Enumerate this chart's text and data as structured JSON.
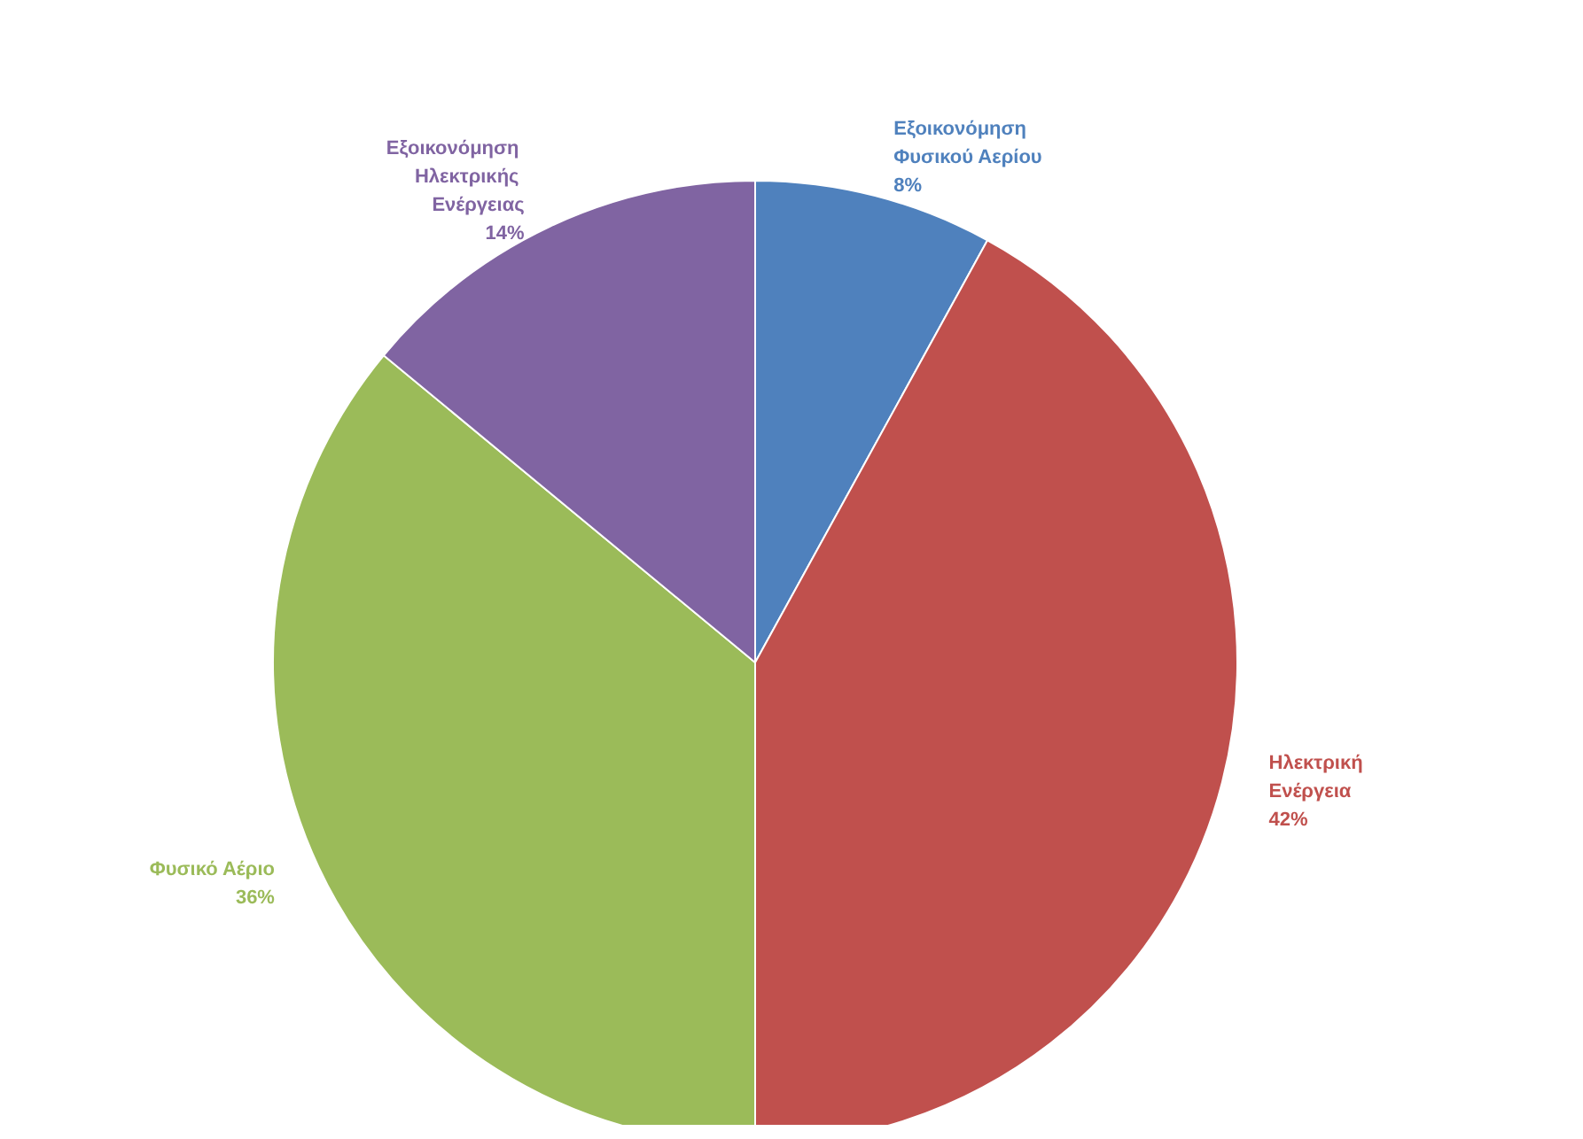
{
  "chart_data": {
    "type": "pie",
    "categories": [
      "Εξοικονόμηση Φυσικού Αερίου",
      "Ηλεκτρική Ενέργεια",
      "Φυσικό Αέριο",
      "Εξοικονόμηση Ηλεκτρικής Ενέργειας"
    ],
    "values": [
      8,
      42,
      36,
      14
    ],
    "colors": [
      "#4f81bd",
      "#c0504d",
      "#9bbb59",
      "#8064a2"
    ],
    "value_labels": [
      "8%",
      "42%",
      "36%",
      "14%"
    ],
    "legend": false
  }
}
